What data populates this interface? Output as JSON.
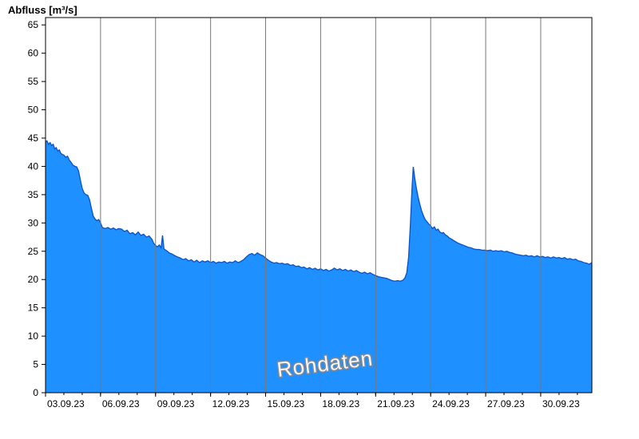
{
  "title": "Abfluss [m³/s]",
  "watermark": "Rohdaten",
  "chart_data": {
    "type": "area",
    "title": "Abfluss [m³/s]",
    "xlabel": "",
    "ylabel": "Abfluss [m³/s]",
    "x_unit": "days since 03.09.23 00:00",
    "xlim": [
      0,
      29.79
    ],
    "ylim": [
      0,
      66.3
    ],
    "y_ticks": [
      0,
      5,
      10,
      15,
      20,
      25,
      30,
      35,
      40,
      45,
      50,
      55,
      60,
      65
    ],
    "x_ticks": [
      {
        "day": 0,
        "label": "03.09.23"
      },
      {
        "day": 3,
        "label": "06.09.23"
      },
      {
        "day": 6,
        "label": "09.09.23"
      },
      {
        "day": 9,
        "label": "12.09.23"
      },
      {
        "day": 12,
        "label": "15.09.23"
      },
      {
        "day": 15,
        "label": "18.09.23"
      },
      {
        "day": 18,
        "label": "21.09.23"
      },
      {
        "day": 21,
        "label": "24.09.23"
      },
      {
        "day": 24,
        "label": "27.09.23"
      },
      {
        "day": 27,
        "label": "30.09.23"
      }
    ],
    "grid": "vertical-only",
    "legend": "none",
    "colors": {
      "fill": "#1E90FF",
      "line": "#1056C8",
      "grid": "#787878",
      "axis": "#000000",
      "watermark_fill": "#ffffff",
      "watermark_outline": "#8a8a8a"
    },
    "series": [
      {
        "name": "Abfluss Rohdaten",
        "points": [
          [
            0,
            44.3
          ],
          [
            0.08,
            44.5
          ],
          [
            0.16,
            43.9
          ],
          [
            0.25,
            44.2
          ],
          [
            0.33,
            43.7
          ],
          [
            0.42,
            43.9
          ],
          [
            0.5,
            43.1
          ],
          [
            0.58,
            43.3
          ],
          [
            0.67,
            42.7
          ],
          [
            0.75,
            42.9
          ],
          [
            0.83,
            42.3
          ],
          [
            0.92,
            42.1
          ],
          [
            1,
            42
          ],
          [
            1.1,
            41.6
          ],
          [
            1.2,
            41.8
          ],
          [
            1.3,
            41.1
          ],
          [
            1.4,
            40.7
          ],
          [
            1.5,
            40.2
          ],
          [
            1.6,
            40
          ],
          [
            1.7,
            39.9
          ],
          [
            1.8,
            39.2
          ],
          [
            1.9,
            37.6
          ],
          [
            2,
            36.1
          ],
          [
            2.1,
            35.3
          ],
          [
            2.2,
            35
          ],
          [
            2.3,
            34.9
          ],
          [
            2.4,
            34.1
          ],
          [
            2.5,
            32.6
          ],
          [
            2.6,
            31.2
          ],
          [
            2.7,
            30.7
          ],
          [
            2.8,
            30.4
          ],
          [
            2.9,
            30.6
          ],
          [
            3,
            30
          ],
          [
            3.1,
            29.2
          ],
          [
            3.25,
            29
          ],
          [
            3.4,
            29.2
          ],
          [
            3.55,
            28.9
          ],
          [
            3.7,
            29.1
          ],
          [
            3.85,
            28.8
          ],
          [
            4,
            29
          ],
          [
            4.15,
            28.9
          ],
          [
            4.3,
            28.5
          ],
          [
            4.45,
            28.7
          ],
          [
            4.6,
            28.1
          ],
          [
            4.75,
            28.3
          ],
          [
            4.9,
            27.9
          ],
          [
            5.05,
            28.4
          ],
          [
            5.2,
            27.8
          ],
          [
            5.35,
            28
          ],
          [
            5.5,
            27.5
          ],
          [
            5.65,
            27.7
          ],
          [
            5.8,
            27.1
          ],
          [
            5.9,
            26.4
          ],
          [
            6,
            26
          ],
          [
            6.1,
            25.8
          ],
          [
            6.2,
            26.1
          ],
          [
            6.3,
            25.6
          ],
          [
            6.38,
            27.8
          ],
          [
            6.46,
            25.4
          ],
          [
            6.6,
            25.1
          ],
          [
            6.75,
            24.7
          ],
          [
            6.9,
            24.5
          ],
          [
            7.05,
            24.2
          ],
          [
            7.2,
            24
          ],
          [
            7.35,
            23.8
          ],
          [
            7.5,
            23.5
          ],
          [
            7.65,
            23.7
          ],
          [
            7.8,
            23.3
          ],
          [
            7.95,
            23.5
          ],
          [
            8.1,
            23.1
          ],
          [
            8.25,
            23.4
          ],
          [
            8.4,
            23
          ],
          [
            8.55,
            23.3
          ],
          [
            8.7,
            23.1
          ],
          [
            8.85,
            23.3
          ],
          [
            9,
            23
          ],
          [
            9.15,
            23.2
          ],
          [
            9.3,
            22.9
          ],
          [
            9.45,
            23.1
          ],
          [
            9.6,
            23
          ],
          [
            9.75,
            23.2
          ],
          [
            9.9,
            22.9
          ],
          [
            10.05,
            23.1
          ],
          [
            10.2,
            23
          ],
          [
            10.35,
            23.3
          ],
          [
            10.5,
            23
          ],
          [
            10.65,
            23.2
          ],
          [
            10.8,
            23.5
          ],
          [
            10.95,
            24
          ],
          [
            11.1,
            24.4
          ],
          [
            11.25,
            24.6
          ],
          [
            11.4,
            24.3
          ],
          [
            11.55,
            24.7
          ],
          [
            11.7,
            24.4
          ],
          [
            11.85,
            24.2
          ],
          [
            12,
            23.8
          ],
          [
            12.15,
            23.4
          ],
          [
            12.3,
            23.1
          ],
          [
            12.45,
            22.9
          ],
          [
            12.6,
            23
          ],
          [
            12.75,
            22.8
          ],
          [
            12.9,
            22.9
          ],
          [
            13.05,
            22.7
          ],
          [
            13.2,
            22.8
          ],
          [
            13.35,
            22.5
          ],
          [
            13.5,
            22.6
          ],
          [
            13.65,
            22.3
          ],
          [
            13.8,
            22.4
          ],
          [
            13.95,
            22.1
          ],
          [
            14.1,
            22.2
          ],
          [
            14.25,
            21.9
          ],
          [
            14.4,
            22.1
          ],
          [
            14.55,
            21.8
          ],
          [
            14.7,
            22
          ],
          [
            14.85,
            21.7
          ],
          [
            15,
            21.9
          ],
          [
            15.15,
            21.6
          ],
          [
            15.3,
            21.8
          ],
          [
            15.45,
            21.5
          ],
          [
            15.6,
            21.7
          ],
          [
            15.75,
            22
          ],
          [
            15.9,
            21.7
          ],
          [
            16.05,
            21.9
          ],
          [
            16.2,
            21.6
          ],
          [
            16.35,
            21.8
          ],
          [
            16.5,
            21.5
          ],
          [
            16.65,
            21.7
          ],
          [
            16.8,
            21.4
          ],
          [
            16.95,
            21.6
          ],
          [
            17.1,
            21.3
          ],
          [
            17.25,
            21.1
          ],
          [
            17.4,
            21.3
          ],
          [
            17.55,
            21
          ],
          [
            17.7,
            21.2
          ],
          [
            17.85,
            20.9
          ],
          [
            18,
            20.7
          ],
          [
            18.15,
            20.5
          ],
          [
            18.3,
            20.4
          ],
          [
            18.45,
            20.3
          ],
          [
            18.6,
            20.2
          ],
          [
            18.75,
            20
          ],
          [
            18.9,
            19.8
          ],
          [
            19.05,
            19.7
          ],
          [
            19.2,
            19.8
          ],
          [
            19.35,
            19.7
          ],
          [
            19.5,
            19.9
          ],
          [
            19.6,
            20.3
          ],
          [
            19.7,
            21.2
          ],
          [
            19.8,
            24
          ],
          [
            19.9,
            30
          ],
          [
            19.98,
            36
          ],
          [
            20.05,
            39.9
          ],
          [
            20.12,
            38.2
          ],
          [
            20.2,
            36.5
          ],
          [
            20.3,
            34.8
          ],
          [
            20.4,
            33.4
          ],
          [
            20.5,
            32.2
          ],
          [
            20.6,
            31.3
          ],
          [
            20.7,
            30.6
          ],
          [
            20.8,
            30.2
          ],
          [
            20.9,
            29.8
          ],
          [
            21,
            29.5
          ],
          [
            21.1,
            29
          ],
          [
            21.2,
            29.3
          ],
          [
            21.3,
            28.7
          ],
          [
            21.4,
            28.9
          ],
          [
            21.5,
            28.4
          ],
          [
            21.6,
            28.2
          ],
          [
            21.7,
            28.3
          ],
          [
            21.8,
            27.9
          ],
          [
            21.9,
            27.7
          ],
          [
            22,
            27.4
          ],
          [
            22.15,
            27.1
          ],
          [
            22.3,
            26.8
          ],
          [
            22.45,
            26.5
          ],
          [
            22.6,
            26.3
          ],
          [
            22.75,
            26.1
          ],
          [
            22.9,
            25.9
          ],
          [
            23.05,
            25.7
          ],
          [
            23.2,
            25.6
          ],
          [
            23.35,
            25.4
          ],
          [
            23.5,
            25.3
          ],
          [
            23.65,
            25.3
          ],
          [
            23.8,
            25.2
          ],
          [
            23.95,
            25.2
          ],
          [
            24.1,
            25.1
          ],
          [
            24.25,
            25.2
          ],
          [
            24.4,
            25
          ],
          [
            24.55,
            25.1
          ],
          [
            24.7,
            25
          ],
          [
            24.85,
            25.1
          ],
          [
            25,
            24.9
          ],
          [
            25.15,
            25
          ],
          [
            25.3,
            24.8
          ],
          [
            25.45,
            24.7
          ],
          [
            25.6,
            24.5
          ],
          [
            25.75,
            24.4
          ],
          [
            25.9,
            24.3
          ],
          [
            26.05,
            24.2
          ],
          [
            26.2,
            24.3
          ],
          [
            26.35,
            24.1
          ],
          [
            26.5,
            24.2
          ],
          [
            26.65,
            24
          ],
          [
            26.8,
            24.2
          ],
          [
            26.95,
            24
          ],
          [
            27.1,
            24.1
          ],
          [
            27.25,
            23.9
          ],
          [
            27.4,
            24
          ],
          [
            27.55,
            23.8
          ],
          [
            27.7,
            24
          ],
          [
            27.85,
            23.8
          ],
          [
            28,
            23.9
          ],
          [
            28.15,
            23.7
          ],
          [
            28.3,
            23.9
          ],
          [
            28.45,
            23.6
          ],
          [
            28.6,
            23.7
          ],
          [
            28.75,
            23.5
          ],
          [
            28.9,
            23.6
          ],
          [
            29.05,
            23.3
          ],
          [
            29.2,
            23.2
          ],
          [
            29.35,
            23
          ],
          [
            29.5,
            22.9
          ],
          [
            29.65,
            22.7
          ],
          [
            29.79,
            23
          ]
        ]
      }
    ]
  }
}
